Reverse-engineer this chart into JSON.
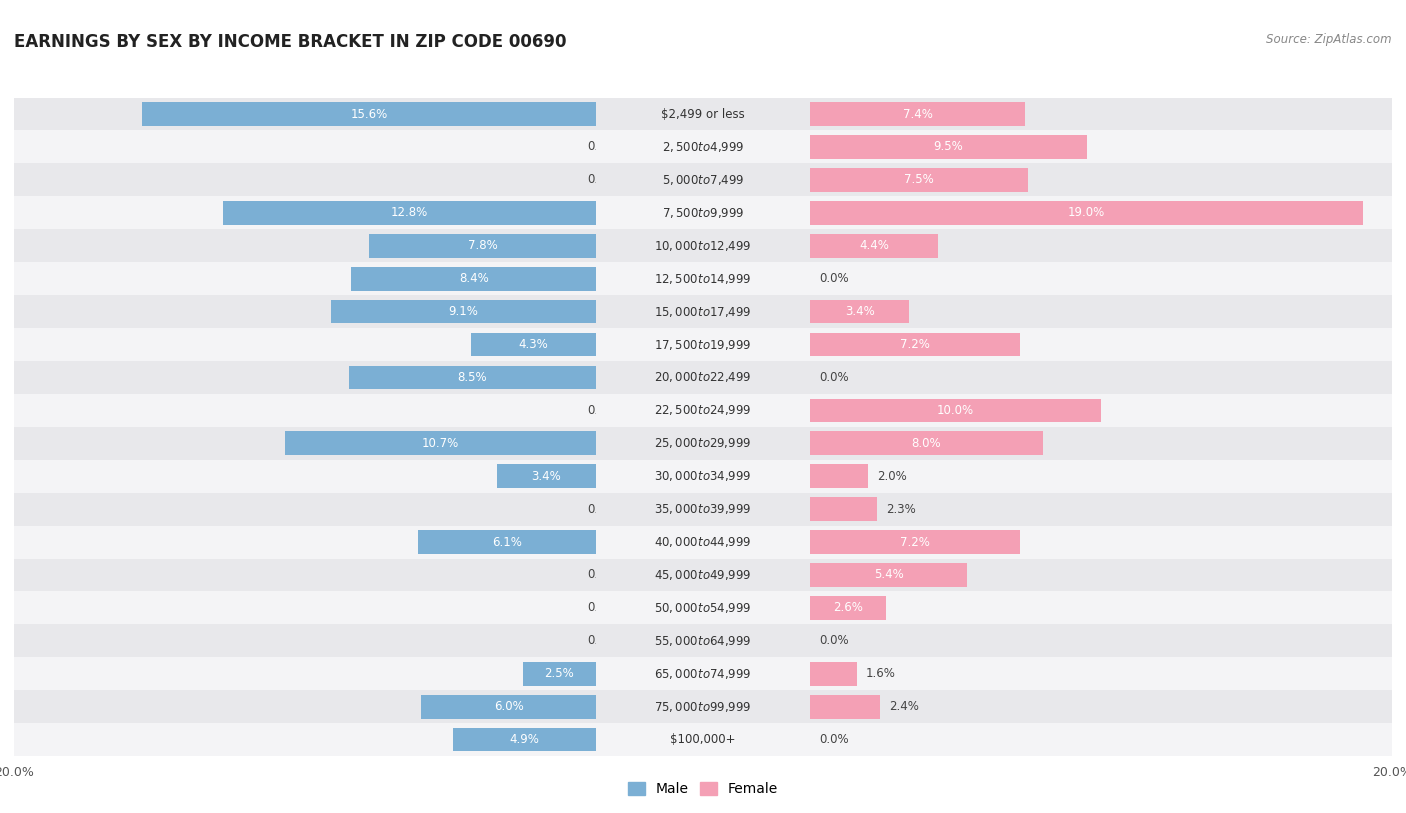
{
  "title": "EARNINGS BY SEX BY INCOME BRACKET IN ZIP CODE 00690",
  "source": "Source: ZipAtlas.com",
  "categories": [
    "$2,499 or less",
    "$2,500 to $4,999",
    "$5,000 to $7,499",
    "$7,500 to $9,999",
    "$10,000 to $12,499",
    "$12,500 to $14,999",
    "$15,000 to $17,499",
    "$17,500 to $19,999",
    "$20,000 to $22,499",
    "$22,500 to $24,999",
    "$25,000 to $29,999",
    "$30,000 to $34,999",
    "$35,000 to $39,999",
    "$40,000 to $44,999",
    "$45,000 to $49,999",
    "$50,000 to $54,999",
    "$55,000 to $64,999",
    "$65,000 to $74,999",
    "$75,000 to $99,999",
    "$100,000+"
  ],
  "male_values": [
    15.6,
    0.0,
    0.0,
    12.8,
    7.8,
    8.4,
    9.1,
    4.3,
    8.5,
    0.0,
    10.7,
    3.4,
    0.0,
    6.1,
    0.0,
    0.0,
    0.0,
    2.5,
    6.0,
    4.9
  ],
  "female_values": [
    7.4,
    9.5,
    7.5,
    19.0,
    4.4,
    0.0,
    3.4,
    7.2,
    0.0,
    10.0,
    8.0,
    2.0,
    2.3,
    7.2,
    5.4,
    2.6,
    0.0,
    1.6,
    2.4,
    0.0
  ],
  "male_color": "#7bafd4",
  "female_color": "#f4a0b5",
  "bg_color": "#ffffff",
  "row_even_color": "#e8e8eb",
  "row_odd_color": "#f4f4f6",
  "xlim": 20.0,
  "bar_height": 0.72,
  "legend_male": "Male",
  "legend_female": "Female",
  "inbar_threshold": 2.5,
  "label_fontsize": 8.5,
  "cat_fontsize": 8.5
}
